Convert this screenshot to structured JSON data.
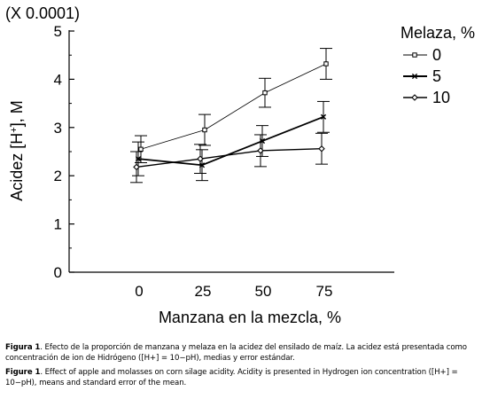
{
  "chart_data": {
    "type": "line",
    "scale_note": "(X 0.0001)",
    "ylabel_prefix": "Acidez [H",
    "ylabel_sup": "+",
    "ylabel_suffix": "], M",
    "xlabel": "Manzana en la mezcla, %",
    "categories": [
      "0",
      "25",
      "50",
      "75"
    ],
    "ylim": [
      0,
      5
    ],
    "yticks": [
      "0",
      "1",
      "2",
      "3",
      "4",
      "5"
    ],
    "legend_title": "Melaza, %",
    "legend_position": "top-right",
    "grid": false,
    "series": [
      {
        "name": "0",
        "marker": "square",
        "values": [
          2.55,
          2.95,
          3.72,
          4.32
        ],
        "errors": [
          0.28,
          0.32,
          0.3,
          0.32
        ]
      },
      {
        "name": "5",
        "marker": "x",
        "values": [
          2.35,
          2.22,
          2.72,
          3.22
        ],
        "errors": [
          0.35,
          0.32,
          0.32,
          0.32
        ]
      },
      {
        "name": "10",
        "marker": "diamond",
        "values": [
          2.18,
          2.35,
          2.52,
          2.56
        ],
        "errors": [
          0.32,
          0.3,
          0.33,
          0.32
        ]
      }
    ]
  },
  "caption_es": {
    "label": "Figura 1",
    "text": ".  Efecto de la proporción de manzana y melaza en la acidez del ensilado de maíz.  La acidez está presentada como concentración de ion de Hidrógeno ([H+] = 10−pH), medias y error estándar."
  },
  "caption_en": {
    "label": "Figure 1",
    "text": ".  Effect of apple and molasses on corn silage acidity. Acidity is presented in Hydrogen ion concentration ([H+] = 10−pH), means and standard error of the mean."
  }
}
